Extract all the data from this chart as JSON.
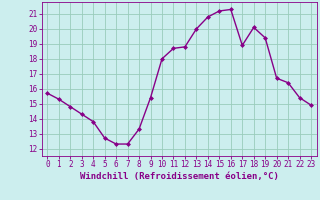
{
  "x": [
    0,
    1,
    2,
    3,
    4,
    5,
    6,
    7,
    8,
    9,
    10,
    11,
    12,
    13,
    14,
    15,
    16,
    17,
    18,
    19,
    20,
    21,
    22,
    23
  ],
  "y": [
    15.7,
    15.3,
    14.8,
    14.3,
    13.8,
    12.7,
    12.3,
    12.3,
    13.3,
    15.4,
    18.0,
    18.7,
    18.8,
    20.0,
    20.8,
    21.2,
    21.3,
    18.9,
    20.1,
    19.4,
    16.7,
    16.4,
    15.4,
    14.9
  ],
  "line_color": "#880088",
  "marker": "D",
  "marker_size": 2.0,
  "linewidth": 1.0,
  "background_color": "#cceeee",
  "grid_color": "#99ccbb",
  "xlabel": "Windchill (Refroidissement éolien,°C)",
  "xlabel_fontsize": 6.5,
  "ylabel_ticks": [
    12,
    13,
    14,
    15,
    16,
    17,
    18,
    19,
    20,
    21
  ],
  "ylim": [
    11.5,
    21.8
  ],
  "xlim": [
    -0.5,
    23.5
  ],
  "xtick_labels": [
    "0",
    "1",
    "2",
    "3",
    "4",
    "5",
    "6",
    "7",
    "8",
    "9",
    "10",
    "11",
    "12",
    "13",
    "14",
    "15",
    "16",
    "17",
    "18",
    "19",
    "20",
    "21",
    "22",
    "23"
  ],
  "tick_fontsize": 5.5
}
